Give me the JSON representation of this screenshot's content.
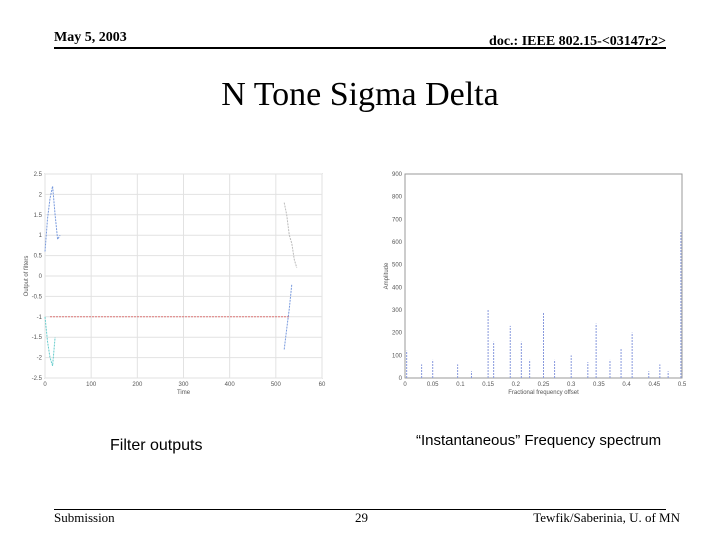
{
  "header": {
    "date": "May 5, 2003",
    "doc": "doc.: IEEE 802.15-<03147r2>"
  },
  "slide": {
    "title": "N Tone Sigma Delta"
  },
  "captions": {
    "left": "Filter outputs",
    "right": "“Instantaneous” Frequency spectrum"
  },
  "footer": {
    "left": "Submission",
    "page": "29",
    "right": "Tewfik/Saberinia, U. of MN"
  },
  "chart_data": [
    {
      "type": "line",
      "xlabel": "Time",
      "ylabel": "Output of filters",
      "xlim": [
        0,
        550
      ],
      "ylim": [
        -2.5,
        2.5
      ],
      "xticks": [
        "0",
        "100",
        "200",
        "300",
        "400",
        "500",
        "60"
      ],
      "yticks": [
        "2.5",
        "2",
        "1.5",
        "1",
        "0.5",
        "0",
        "-0.5",
        "-1",
        "-1.5",
        "-2",
        "-2.5"
      ],
      "grid": true,
      "colors": [
        "#7799dd",
        "#66cccc",
        "#dd7777",
        "#bbbbbb"
      ],
      "series": [
        {
          "x": [
            0,
            5,
            10,
            15,
            20,
            25,
            30
          ],
          "values": [
            0.6,
            1.4,
            1.9,
            2.2,
            1.5,
            0.9,
            1.0
          ]
        },
        {
          "x": [
            0,
            5,
            10,
            15,
            20
          ],
          "values": [
            -1.0,
            -1.6,
            -2.0,
            -2.2,
            -1.5
          ]
        },
        {
          "x": [
            10,
            20,
            480,
            485
          ],
          "values": [
            -1.0,
            -1.0,
            -1.0,
            -1.0
          ]
        },
        {
          "x": [
            475,
            480,
            485,
            490,
            495,
            500
          ],
          "values": [
            1.8,
            1.5,
            1.0,
            0.8,
            0.4,
            0.2
          ]
        },
        {
          "x": [
            475,
            480,
            485,
            490
          ],
          "values": [
            -1.8,
            -1.3,
            -0.8,
            -0.2
          ]
        }
      ]
    },
    {
      "type": "line",
      "xlabel": "Fractional frequency offset",
      "ylabel": "Amplitude",
      "xlim": [
        0,
        0.5
      ],
      "ylim": [
        0,
        900
      ],
      "xticks": [
        "0",
        "0.05",
        "0.1",
        "0.15",
        "0.2",
        "0.25",
        "0.3",
        "0.35",
        "0.4",
        "0.45",
        "0.5"
      ],
      "yticks": [
        "900",
        "800",
        "700",
        "600",
        "500",
        "400",
        "300",
        "200",
        "100",
        "0"
      ],
      "grid": false,
      "series": [
        {
          "x": [
            0.003,
            0.03,
            0.05,
            0.095,
            0.12,
            0.15,
            0.16,
            0.19,
            0.21,
            0.225,
            0.25,
            0.27,
            0.3,
            0.33,
            0.345,
            0.37,
            0.39,
            0.41,
            0.44,
            0.46,
            0.475,
            0.498
          ],
          "values": [
            120,
            60,
            80,
            60,
            30,
            300,
            160,
            230,
            160,
            80,
            290,
            80,
            100,
            70,
            240,
            80,
            130,
            200,
            30,
            60,
            30,
            650
          ]
        }
      ]
    }
  ]
}
